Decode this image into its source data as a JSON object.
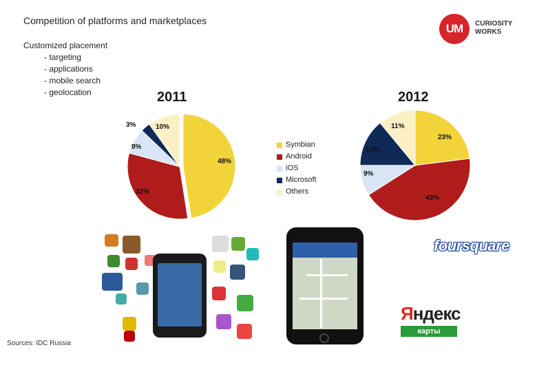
{
  "slide": {
    "title": "Competition of platforms and marketplaces",
    "bullets_head": "Customized placement",
    "bullets": [
      "- targeting",
      "- applications",
      "- mobile search",
      "- geolocation"
    ],
    "sources": "Sources: IDC Russia"
  },
  "logo": {
    "mark": "UM",
    "line1": "CURIOSITY",
    "line2": "WORKS"
  },
  "images": {
    "foursquare_text": "foursquare",
    "yandex_word_first": "Я",
    "yandex_word_rest": "ндекс",
    "yandex_sub": "карты"
  },
  "colors": {
    "Symbian": "#f2d43a",
    "Android": "#b01c1c",
    "iOS": "#d9e4f5",
    "Microsoft": "#0f2a57",
    "Others": "#fbefc5"
  },
  "chart_data": [
    {
      "type": "pie",
      "title": "2011",
      "categories": [
        "Symbian",
        "Android",
        "iOS",
        "Microsoft",
        "Others"
      ],
      "values": [
        48,
        32,
        8,
        3,
        10
      ],
      "data_labels": [
        "48%",
        "32%",
        "8%",
        "3%",
        "10%"
      ],
      "legend": "right"
    },
    {
      "type": "pie",
      "title": "2012",
      "categories": [
        "Symbian",
        "Android",
        "iOS",
        "Microsoft",
        "Others"
      ],
      "values": [
        23,
        43,
        9,
        14,
        11
      ],
      "data_labels": [
        "23%",
        "43%",
        "9%",
        "14%",
        "11%"
      ],
      "legend": "left"
    }
  ]
}
